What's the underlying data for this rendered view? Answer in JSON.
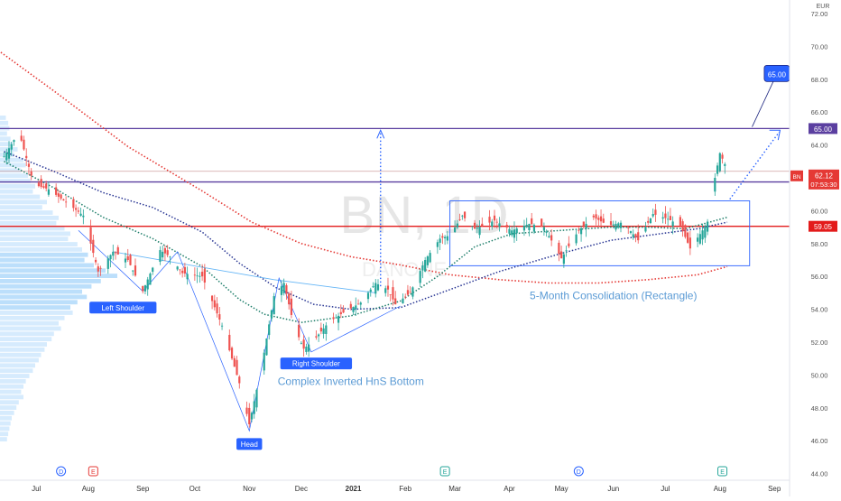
{
  "chart_data": {
    "type": "candlestick",
    "symbol": "BN",
    "interval": "1D",
    "watermark": "BN, 1D",
    "watermark_sub": "DANONE",
    "currency": "EUR",
    "last_price": "62.12",
    "countdown": "07:53:30",
    "y_range": [
      44,
      73
    ],
    "y_ticks": [
      "44.00",
      "46.00",
      "48.00",
      "50.00",
      "52.00",
      "54.00",
      "56.00",
      "58.00",
      "60.00",
      "62.00",
      "64.00",
      "66.00",
      "68.00",
      "70.00",
      "72.00"
    ],
    "x_labels": [
      {
        "label": "Jul",
        "slot": 13
      },
      {
        "label": "Aug",
        "slot": 34
      },
      {
        "label": "Sep",
        "slot": 56
      },
      {
        "label": "Oct",
        "slot": 77
      },
      {
        "label": "Nov",
        "slot": 99
      },
      {
        "label": "Dec",
        "slot": 120
      },
      {
        "label": "2021",
        "slot": 141
      },
      {
        "label": "Feb",
        "slot": 162
      },
      {
        "label": "Mar",
        "slot": 182
      },
      {
        "label": "Apr",
        "slot": 204
      },
      {
        "label": "May",
        "slot": 225
      },
      {
        "label": "Jun",
        "slot": 246
      },
      {
        "label": "Jul",
        "slot": 267
      },
      {
        "label": "Aug",
        "slot": 289
      },
      {
        "label": "Sep",
        "slot": 311
      }
    ],
    "level_lines": [
      {
        "name": "resistance-65",
        "value": 65.0,
        "label": "65.00",
        "color": "#5b3fa0"
      },
      {
        "name": "level-61-75",
        "value": 61.75,
        "label": "61.75",
        "color": "#5b3fa0"
      },
      {
        "name": "support-59-05",
        "value": 59.05,
        "label": "59.05",
        "color": "#e31b1b"
      },
      {
        "name": "thin-62-4",
        "value": 62.4,
        "label": "",
        "color": "#d0a0a0"
      }
    ],
    "price_badges": [
      {
        "label": "BN",
        "value": 62.12,
        "color": "#e53935"
      }
    ],
    "key_points": [
      {
        "slot": 0,
        "price": 63.3
      },
      {
        "slot": 6,
        "price": 64.8
      },
      {
        "slot": 12,
        "price": 61.6
      },
      {
        "slot": 18,
        "price": 61.3
      },
      {
        "slot": 26,
        "price": 60.4
      },
      {
        "slot": 32,
        "price": 59.7
      },
      {
        "slot": 38,
        "price": 56.3
      },
      {
        "slot": 44,
        "price": 57.5
      },
      {
        "slot": 50,
        "price": 57.0
      },
      {
        "slot": 56,
        "price": 55.1
      },
      {
        "slot": 63,
        "price": 57.6
      },
      {
        "slot": 67,
        "price": 57.2
      },
      {
        "slot": 72,
        "price": 56.2
      },
      {
        "slot": 80,
        "price": 56.0
      },
      {
        "slot": 88,
        "price": 53.0
      },
      {
        "slot": 95,
        "price": 49.5
      },
      {
        "slot": 99,
        "price": 47.0
      },
      {
        "slot": 104,
        "price": 50.5
      },
      {
        "slot": 109,
        "price": 54.8
      },
      {
        "slot": 113,
        "price": 55.6
      },
      {
        "slot": 117,
        "price": 53.0
      },
      {
        "slot": 121,
        "price": 51.6
      },
      {
        "slot": 125,
        "price": 52.1
      },
      {
        "slot": 131,
        "price": 53.2
      },
      {
        "slot": 137,
        "price": 53.8
      },
      {
        "slot": 144,
        "price": 54.4
      },
      {
        "slot": 150,
        "price": 55.6
      },
      {
        "slot": 155,
        "price": 55.2
      },
      {
        "slot": 158,
        "price": 54.3
      },
      {
        "slot": 164,
        "price": 55.0
      },
      {
        "slot": 170,
        "price": 57.0
      },
      {
        "slot": 176,
        "price": 58.3
      },
      {
        "slot": 180,
        "price": 58.5
      },
      {
        "slot": 185,
        "price": 59.7
      },
      {
        "slot": 190,
        "price": 58.9
      },
      {
        "slot": 198,
        "price": 59.4
      },
      {
        "slot": 205,
        "price": 58.8
      },
      {
        "slot": 212,
        "price": 59.2
      },
      {
        "slot": 218,
        "price": 59.0
      },
      {
        "slot": 225,
        "price": 57.1
      },
      {
        "slot": 232,
        "price": 58.8
      },
      {
        "slot": 238,
        "price": 59.6
      },
      {
        "slot": 244,
        "price": 59.1
      },
      {
        "slot": 250,
        "price": 59.3
      },
      {
        "slot": 256,
        "price": 58.2
      },
      {
        "slot": 262,
        "price": 59.8
      },
      {
        "slot": 268,
        "price": 59.5
      },
      {
        "slot": 273,
        "price": 59.1
      },
      {
        "slot": 277,
        "price": 57.7
      },
      {
        "slot": 282,
        "price": 58.8
      },
      {
        "slot": 285,
        "price": 59.6
      },
      {
        "slot": 287,
        "price": 62.0
      },
      {
        "slot": 289,
        "price": 63.5
      },
      {
        "slot": 292,
        "price": 62.5
      }
    ],
    "ema_fast": [
      {
        "slot": 0,
        "price": 63.0
      },
      {
        "slot": 20,
        "price": 61.4
      },
      {
        "slot": 40,
        "price": 59.6
      },
      {
        "slot": 60,
        "price": 58.3
      },
      {
        "slot": 80,
        "price": 56.6
      },
      {
        "slot": 95,
        "price": 54.6
      },
      {
        "slot": 105,
        "price": 53.7
      },
      {
        "slot": 120,
        "price": 53.2
      },
      {
        "slot": 140,
        "price": 53.6
      },
      {
        "slot": 160,
        "price": 54.5
      },
      {
        "slot": 175,
        "price": 56.0
      },
      {
        "slot": 190,
        "price": 57.8
      },
      {
        "slot": 205,
        "price": 58.6
      },
      {
        "slot": 225,
        "price": 58.8
      },
      {
        "slot": 245,
        "price": 59.0
      },
      {
        "slot": 260,
        "price": 59.0
      },
      {
        "slot": 275,
        "price": 58.9
      },
      {
        "slot": 292,
        "price": 59.6
      }
    ],
    "ema_mid": [
      {
        "slot": 0,
        "price": 63.6
      },
      {
        "slot": 20,
        "price": 62.4
      },
      {
        "slot": 40,
        "price": 61.1
      },
      {
        "slot": 60,
        "price": 60.2
      },
      {
        "slot": 80,
        "price": 58.7
      },
      {
        "slot": 95,
        "price": 56.8
      },
      {
        "slot": 110,
        "price": 55.3
      },
      {
        "slot": 125,
        "price": 54.3
      },
      {
        "slot": 140,
        "price": 54.0
      },
      {
        "slot": 160,
        "price": 54.1
      },
      {
        "slot": 180,
        "price": 55.2
      },
      {
        "slot": 200,
        "price": 56.3
      },
      {
        "slot": 225,
        "price": 57.4
      },
      {
        "slot": 245,
        "price": 58.2
      },
      {
        "slot": 265,
        "price": 58.6
      },
      {
        "slot": 280,
        "price": 58.9
      },
      {
        "slot": 292,
        "price": 59.3
      }
    ],
    "sma_slow": [
      {
        "slot": -10,
        "price": 70.6
      },
      {
        "slot": 20,
        "price": 67.3
      },
      {
        "slot": 50,
        "price": 63.9
      },
      {
        "slot": 80,
        "price": 61.2
      },
      {
        "slot": 100,
        "price": 59.3
      },
      {
        "slot": 120,
        "price": 58.0
      },
      {
        "slot": 140,
        "price": 57.2
      },
      {
        "slot": 160,
        "price": 56.7
      },
      {
        "slot": 180,
        "price": 56.1
      },
      {
        "slot": 200,
        "price": 55.8
      },
      {
        "slot": 220,
        "price": 55.6
      },
      {
        "slot": 240,
        "price": 55.6
      },
      {
        "slot": 260,
        "price": 55.8
      },
      {
        "slot": 280,
        "price": 56.1
      },
      {
        "slot": 292,
        "price": 56.6
      }
    ],
    "annotations": [
      {
        "name": "left-shoulder-label",
        "text": "Left Shoulder",
        "slot": 48,
        "price": 54.1
      },
      {
        "name": "head-label",
        "text": "Head",
        "slot": 99,
        "price": 45.8
      },
      {
        "name": "right-shoulder-label",
        "text": "Right Shoulder",
        "slot": 126,
        "price": 50.7
      },
      {
        "name": "pattern-title",
        "text": "Complex Inverted HnS Bottom",
        "slot": 140,
        "price": 49.4
      },
      {
        "name": "consolidation-title",
        "text": "5-Month Consolidation (Rectangle)",
        "slot": 246,
        "price": 54.6
      },
      {
        "name": "target-callout",
        "text": "65.00",
        "slot": 312,
        "price": 68.3
      }
    ],
    "rectangle": {
      "slot_start": 180,
      "slot_end": 301,
      "price_low": 56.65,
      "price_high": 60.6
    },
    "event_markers": [
      {
        "type": "D",
        "slot": 23,
        "color": "#2962ff"
      },
      {
        "type": "E",
        "slot": 36,
        "color": "#e53935"
      },
      {
        "type": "E",
        "slot": 178,
        "color": "#26a69a"
      },
      {
        "type": "D",
        "slot": 232,
        "color": "#2962ff"
      },
      {
        "type": "E",
        "slot": 290,
        "color": "#26a69a"
      }
    ],
    "volume_profile": [
      0.05,
      0.07,
      0.08,
      0.06,
      0.09,
      0.11,
      0.15,
      0.12,
      0.2,
      0.22,
      0.18,
      0.24,
      0.26,
      0.3,
      0.28,
      0.34,
      0.4,
      0.36,
      0.45,
      0.5,
      0.48,
      0.55,
      0.6,
      0.58,
      0.66,
      0.7,
      0.75,
      0.72,
      0.8,
      0.9,
      1.0,
      0.86,
      0.78,
      0.7,
      0.74,
      0.66,
      0.6,
      0.62,
      0.55,
      0.5,
      0.52,
      0.46,
      0.44,
      0.4,
      0.38,
      0.35,
      0.33,
      0.3,
      0.28,
      0.25,
      0.22,
      0.2,
      0.18,
      0.2,
      0.16,
      0.14,
      0.12,
      0.1,
      0.09,
      0.08,
      0.07,
      0.06
    ],
    "grid": false,
    "colors": {
      "up": "#26a69a",
      "down": "#ef5350",
      "ema_fast": "#1e7e6a",
      "ema_mid": "#283593",
      "sma_slow": "#e53935",
      "label_bg": "#2962ff"
    }
  }
}
